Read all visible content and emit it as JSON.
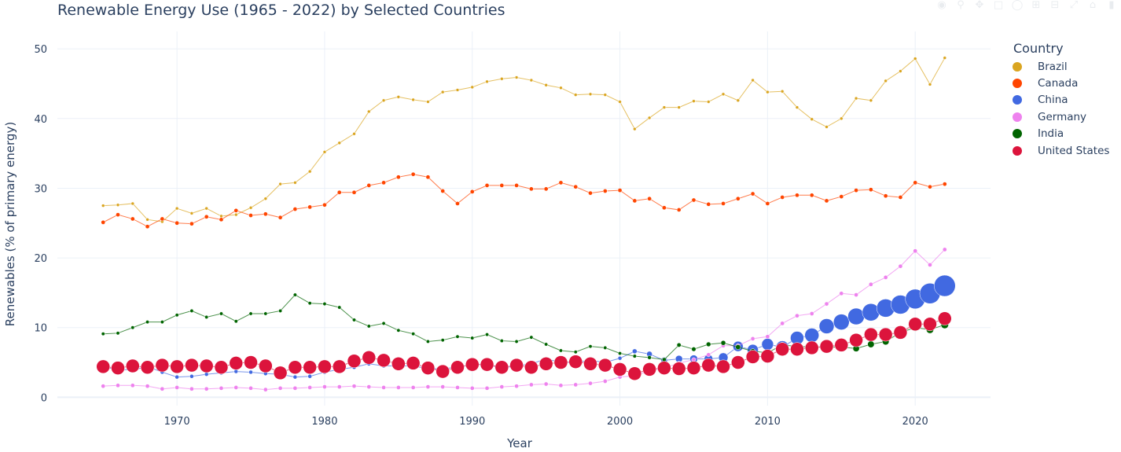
{
  "title": "Renewable Energy Use (1965 - 2022) by Selected Countries",
  "modebar": [
    {
      "name": "camera-icon",
      "label": "Download plot as png"
    },
    {
      "name": "zoom-icon",
      "label": "Zoom"
    },
    {
      "name": "pan-icon",
      "label": "Pan"
    },
    {
      "name": "box-select-icon",
      "label": "Box Select"
    },
    {
      "name": "lasso-icon",
      "label": "Lasso Select"
    },
    {
      "name": "zoom-in-icon",
      "label": "Zoom in"
    },
    {
      "name": "zoom-out-icon",
      "label": "Zoom out"
    },
    {
      "name": "autoscale-icon",
      "label": "Autoscale"
    },
    {
      "name": "home-icon",
      "label": "Reset axes"
    },
    {
      "name": "plotly-logo-icon",
      "label": "Produced with Plotly"
    }
  ],
  "legend": {
    "title": "Country",
    "items": [
      {
        "label": "Brazil",
        "color": "#DAA520"
      },
      {
        "label": "Canada",
        "color": "#FF4500"
      },
      {
        "label": "China",
        "color": "#4169E1"
      },
      {
        "label": "Germany",
        "color": "#EE82EE"
      },
      {
        "label": "India",
        "color": "#006400"
      },
      {
        "label": "United States",
        "color": "#DC143C"
      }
    ]
  },
  "chart_data": {
    "type": "scatter",
    "mode": "lines+markers",
    "title": "Renewable Energy Use (1965 - 2022) by Selected Countries",
    "xlabel": "Year",
    "ylabel": "Renewables (% of primary energy)",
    "xlim": [
      1961.9,
      2025.1
    ],
    "ylim": [
      -1.2,
      52.5
    ],
    "xticks": [
      1970,
      1980,
      1990,
      2000,
      2010,
      2020
    ],
    "yticks": [
      0,
      10,
      20,
      30,
      40,
      50
    ],
    "grid": true,
    "legend_position": "right",
    "marker_size_encodes": "primary energy consumption (relative)",
    "x_start": 1965,
    "series": [
      {
        "name": "Brazil",
        "color": "#DAA520",
        "size": 0.12,
        "values": [
          27.5,
          27.6,
          27.8,
          25.5,
          25.2,
          27.1,
          26.4,
          27.1,
          26.0,
          26.2,
          27.2,
          28.5,
          30.6,
          30.8,
          32.4,
          35.2,
          36.5,
          37.8,
          41.0,
          42.6,
          43.1,
          42.7,
          42.4,
          43.8,
          44.1,
          44.5,
          45.3,
          45.7,
          45.9,
          45.5,
          44.8,
          44.4,
          43.4,
          43.5,
          43.4,
          42.4,
          38.5,
          40.1,
          41.6,
          41.6,
          42.5,
          42.4,
          43.5,
          42.6,
          45.5,
          43.8,
          43.9,
          41.6,
          39.9,
          38.8,
          40.0,
          42.9,
          42.6,
          45.4,
          46.8,
          48.6,
          44.9,
          48.7
        ]
      },
      {
        "name": "Canada",
        "color": "#FF4500",
        "size": 0.18,
        "values": [
          25.1,
          26.2,
          25.6,
          24.5,
          25.6,
          25.0,
          24.9,
          25.9,
          25.5,
          26.8,
          26.1,
          26.3,
          25.8,
          27.0,
          27.3,
          27.6,
          29.4,
          29.4,
          30.4,
          30.8,
          31.6,
          32.0,
          31.6,
          29.6,
          27.8,
          29.5,
          30.4,
          30.4,
          30.4,
          29.9,
          29.9,
          30.8,
          30.2,
          29.3,
          29.6,
          29.7,
          28.2,
          28.5,
          27.2,
          26.9,
          28.3,
          27.7,
          27.8,
          28.5,
          29.2,
          27.8,
          28.7,
          29.0,
          29.0,
          28.2,
          28.8,
          29.7,
          29.8,
          28.9,
          28.7,
          30.8,
          30.2,
          30.6
        ]
      },
      {
        "name": "China",
        "color": "#4169E1",
        "size": 0.35,
        "values": [
          4.3,
          4.0,
          3.9,
          4.4,
          3.6,
          2.9,
          3.0,
          3.3,
          3.5,
          3.7,
          3.6,
          3.4,
          3.3,
          2.9,
          3.0,
          3.6,
          4.0,
          4.3,
          4.8,
          4.5,
          4.5,
          4.5,
          4.1,
          4.1,
          4.3,
          4.7,
          4.7,
          4.2,
          4.5,
          4.8,
          5.5,
          5.0,
          5.0,
          5.3,
          5.0,
          5.6,
          6.6,
          6.2,
          5.3,
          5.5,
          5.5,
          5.5,
          5.7,
          7.3,
          6.8,
          7.6,
          7.2,
          8.5,
          8.9,
          10.2,
          10.8,
          11.6,
          12.2,
          12.8,
          13.3,
          14.1,
          14.9,
          16.0
        ]
      },
      {
        "name": "Germany",
        "color": "#EE82EE",
        "size": 0.18,
        "values": [
          1.6,
          1.7,
          1.7,
          1.6,
          1.2,
          1.4,
          1.2,
          1.2,
          1.3,
          1.4,
          1.3,
          1.1,
          1.3,
          1.3,
          1.4,
          1.5,
          1.5,
          1.6,
          1.5,
          1.4,
          1.4,
          1.4,
          1.5,
          1.5,
          1.4,
          1.3,
          1.3,
          1.5,
          1.6,
          1.8,
          1.9,
          1.7,
          1.8,
          2.0,
          2.3,
          2.9,
          3.1,
          3.8,
          4.2,
          4.9,
          5.4,
          6.1,
          7.4,
          7.4,
          8.4,
          8.7,
          10.6,
          11.7,
          12.0,
          13.4,
          14.9,
          14.7,
          16.2,
          17.2,
          18.8,
          21.0,
          19.0,
          21.2
        ]
      },
      {
        "name": "India",
        "color": "#006400",
        "size": 0.2,
        "values": [
          9.1,
          9.2,
          10.0,
          10.8,
          10.8,
          11.8,
          12.4,
          11.5,
          12.0,
          10.9,
          12.0,
          12.0,
          12.4,
          14.7,
          13.5,
          13.4,
          12.9,
          11.1,
          10.2,
          10.6,
          9.6,
          9.1,
          8.0,
          8.2,
          8.7,
          8.5,
          9.0,
          8.1,
          8.0,
          8.6,
          7.6,
          6.7,
          6.5,
          7.3,
          7.1,
          6.3,
          5.9,
          5.7,
          5.4,
          7.5,
          6.9,
          7.6,
          7.8,
          7.2,
          6.6,
          6.4,
          7.5,
          7.3,
          7.2,
          7.2,
          7.2,
          7.0,
          7.6,
          8.0,
          9.3,
          10.0,
          9.7,
          10.4
        ]
      },
      {
        "name": "United States",
        "color": "#DC143C",
        "size": 0.55,
        "values": [
          4.4,
          4.2,
          4.5,
          4.3,
          4.6,
          4.4,
          4.6,
          4.5,
          4.3,
          4.9,
          5.0,
          4.5,
          3.5,
          4.3,
          4.3,
          4.4,
          4.4,
          5.2,
          5.7,
          5.3,
          4.8,
          4.9,
          4.2,
          3.7,
          4.3,
          4.7,
          4.7,
          4.3,
          4.6,
          4.3,
          4.8,
          5.0,
          5.1,
          4.8,
          4.6,
          4.0,
          3.4,
          4.0,
          4.2,
          4.1,
          4.2,
          4.6,
          4.4,
          5.0,
          5.8,
          5.9,
          6.9,
          6.9,
          7.1,
          7.3,
          7.5,
          8.2,
          9.0,
          9.0,
          9.3,
          10.5,
          10.5,
          11.3
        ]
      }
    ]
  }
}
